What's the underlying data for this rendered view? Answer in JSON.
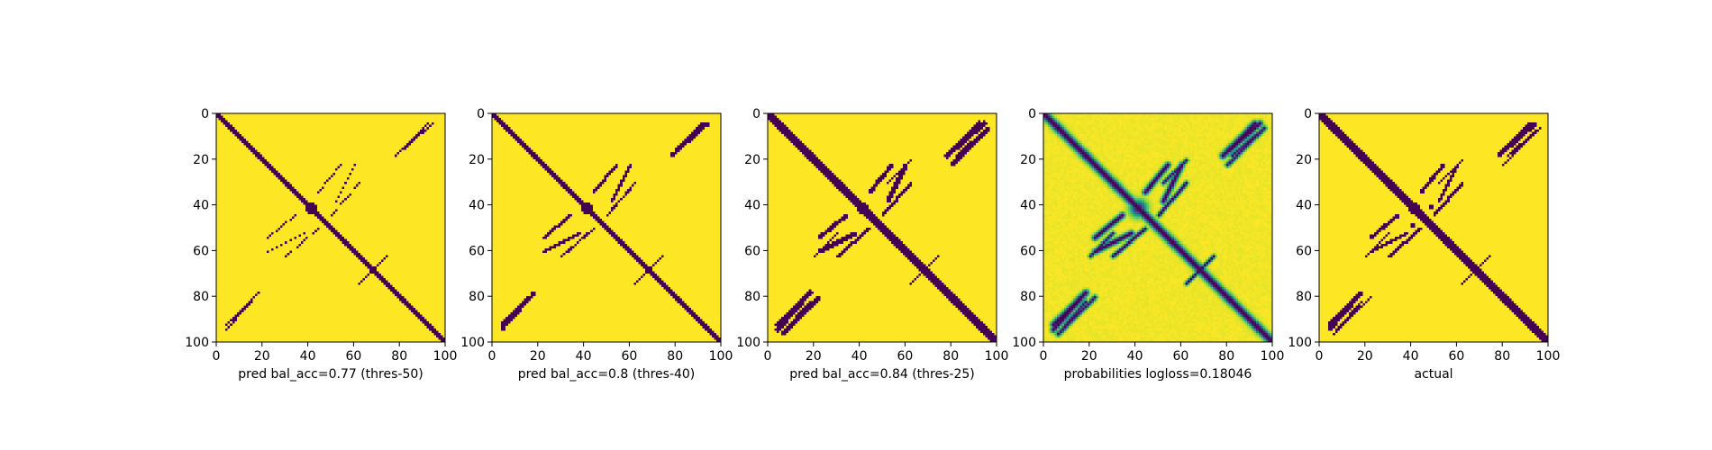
{
  "chart_data": [
    {
      "type": "heatmap",
      "title": "",
      "xlabel": "pred bal_acc=0.77 (thres-50)",
      "ylabel": "",
      "xlim": [
        0,
        100
      ],
      "ylim": [
        100,
        0
      ],
      "xticks": [
        "0",
        "20",
        "40",
        "60",
        "80",
        "100"
      ],
      "yticks": [
        "0",
        "20",
        "40",
        "60",
        "80",
        "100"
      ],
      "colormap": "viridis",
      "binary": true,
      "diagonal_width": 2.2,
      "off_diagonal_strength": 0.55
    },
    {
      "type": "heatmap",
      "title": "",
      "xlabel": "pred bal_acc=0.8 (thres-40)",
      "ylabel": "",
      "xlim": [
        0,
        100
      ],
      "ylim": [
        100,
        0
      ],
      "xticks": [
        "0",
        "20",
        "40",
        "60",
        "80",
        "100"
      ],
      "yticks": [
        "0",
        "20",
        "40",
        "60",
        "80",
        "100"
      ],
      "colormap": "viridis",
      "binary": true,
      "diagonal_width": 2.4,
      "off_diagonal_strength": 0.7
    },
    {
      "type": "heatmap",
      "title": "",
      "xlabel": "pred bal_acc=0.84 (thres-25)",
      "ylabel": "",
      "xlim": [
        0,
        100
      ],
      "ylim": [
        100,
        0
      ],
      "xticks": [
        "0",
        "20",
        "40",
        "60",
        "80",
        "100"
      ],
      "yticks": [
        "0",
        "20",
        "40",
        "60",
        "80",
        "100"
      ],
      "colormap": "viridis",
      "binary": true,
      "diagonal_width": 2.7,
      "off_diagonal_strength": 0.95
    },
    {
      "type": "heatmap",
      "title": "",
      "xlabel": "probabilities logloss=0.18046",
      "ylabel": "",
      "xlim": [
        0,
        100
      ],
      "ylim": [
        100,
        0
      ],
      "xticks": [
        "0",
        "20",
        "40",
        "60",
        "80",
        "100"
      ],
      "yticks": [
        "0",
        "20",
        "40",
        "60",
        "80",
        "100"
      ],
      "colormap": "viridis",
      "binary": false,
      "diagonal_width": 2.5,
      "off_diagonal_strength": 1.0
    },
    {
      "type": "heatmap",
      "title": "",
      "xlabel": "actual",
      "ylabel": "",
      "xlim": [
        0,
        100
      ],
      "ylim": [
        100,
        0
      ],
      "xticks": [
        "0",
        "20",
        "40",
        "60",
        "80",
        "100"
      ],
      "yticks": [
        "0",
        "20",
        "40",
        "60",
        "80",
        "100"
      ],
      "colormap": "viridis",
      "binary": true,
      "diagonal_width": 2.6,
      "off_diagonal_strength": 0.85,
      "noise": true
    }
  ],
  "colors": {
    "high": "#fde725",
    "low": "#440154",
    "mid_green": "#35b779",
    "mid_teal": "#21918c"
  }
}
